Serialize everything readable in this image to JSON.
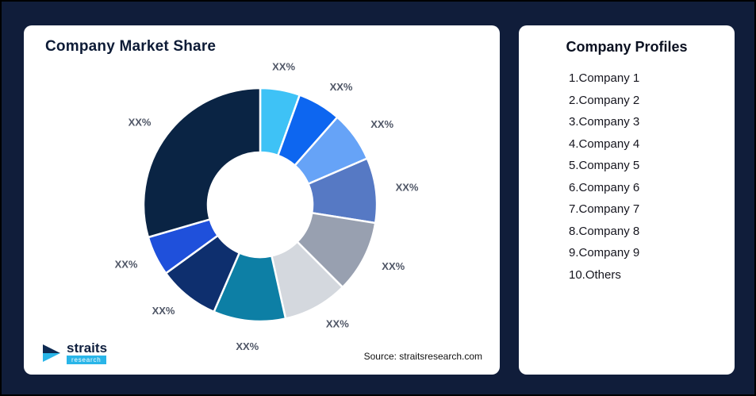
{
  "page": {
    "background_color": "#101D3A"
  },
  "left_card": {
    "title": "Company Market Share",
    "source": "Source: straitsresearch.com",
    "logo_name": "straits",
    "logo_subtitle": "research"
  },
  "right_card": {
    "title": "Company Profiles",
    "items": [
      "1.Company 1",
      "2.Company 2",
      "3.Company 3",
      "4.Company 4",
      "5.Company 5",
      "6.Company 6",
      "7.Company 7",
      "8.Company 8",
      "9.Company 9",
      "10.Others"
    ]
  },
  "chart_data": {
    "type": "pie",
    "variant": "donut",
    "title": "Company Market Share",
    "legend": "none",
    "start_angle_deg": 0,
    "inner_radius_ratio": 0.45,
    "label_color": "#4F5666",
    "segments": [
      {
        "label": "XX%",
        "value": 5.5,
        "color": "#3EC2F6"
      },
      {
        "label": "XX%",
        "value": 6.0,
        "color": "#0D66F0"
      },
      {
        "label": "XX%",
        "value": 7.0,
        "color": "#66A3F7"
      },
      {
        "label": "XX%",
        "value": 9.0,
        "color": "#5679C4"
      },
      {
        "label": "XX%",
        "value": 10.0,
        "color": "#98A0B0"
      },
      {
        "label": "XX%",
        "value": 9.0,
        "color": "#D4D8DE"
      },
      {
        "label": "XX%",
        "value": 10.0,
        "color": "#0D7FA5"
      },
      {
        "label": "XX%",
        "value": 8.5,
        "color": "#0E2F6E"
      },
      {
        "label": "XX%",
        "value": 5.5,
        "color": "#1F50DB"
      },
      {
        "label": "XX%",
        "value": 29.5,
        "color": "#0A2444"
      }
    ]
  }
}
